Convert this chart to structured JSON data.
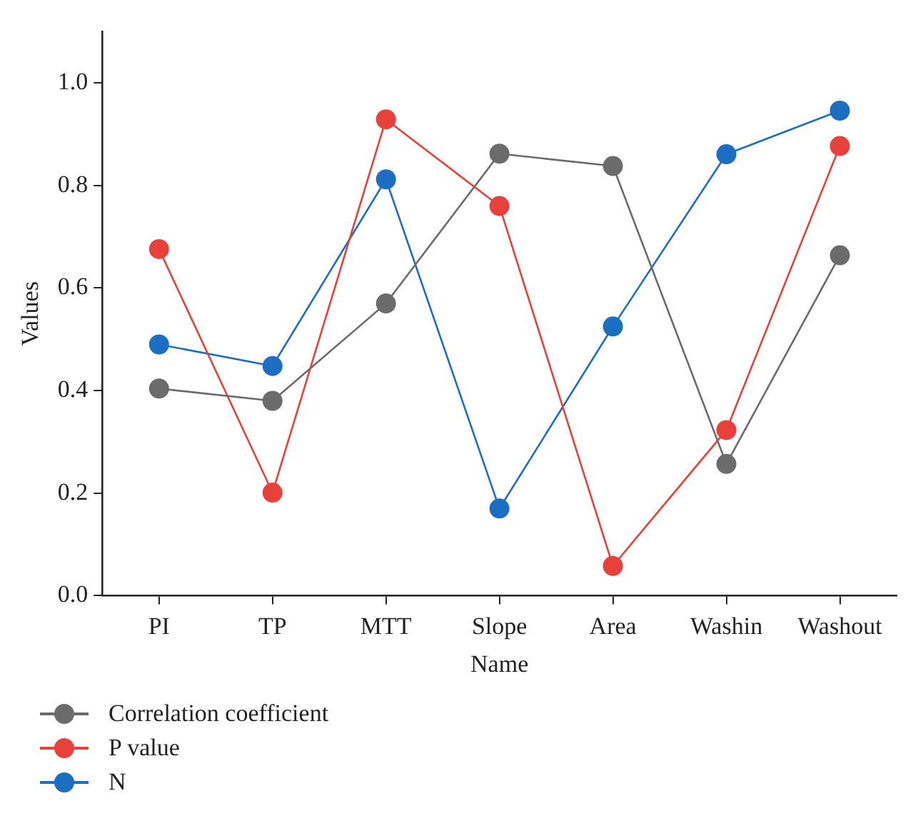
{
  "chart_data": {
    "type": "line",
    "xlabel": "Name",
    "ylabel": "Values",
    "categories": [
      "PI",
      "TP",
      "MTT",
      "Slope",
      "Area",
      "Washin",
      "Washout"
    ],
    "series": [
      {
        "name": "Correlation coefficient",
        "color": "#6b6b6b",
        "values": [
          0.404,
          0.38,
          0.57,
          0.862,
          0.838,
          0.257,
          0.664
        ]
      },
      {
        "name": "P value",
        "color": "#e8403a",
        "values": [
          0.676,
          0.201,
          0.929,
          0.76,
          0.058,
          0.323,
          0.877
        ]
      },
      {
        "name": "N",
        "color": "#1b6ec2",
        "values": [
          0.49,
          0.448,
          0.812,
          0.17,
          0.525,
          0.861,
          0.946
        ]
      }
    ],
    "ylim": [
      0,
      1.1
    ],
    "yticks": [
      {
        "value": 0,
        "label": "0.0"
      },
      {
        "value": 0.2,
        "label": "0.2"
      },
      {
        "value": 0.4,
        "label": "0.4"
      },
      {
        "value": 0.6,
        "label": "0.6"
      },
      {
        "value": 0.8,
        "label": "0.8"
      },
      {
        "value": 1,
        "label": "1.0"
      }
    ],
    "grid": false,
    "legend": "bottom left",
    "marker": "circle",
    "line_style": "solid"
  }
}
